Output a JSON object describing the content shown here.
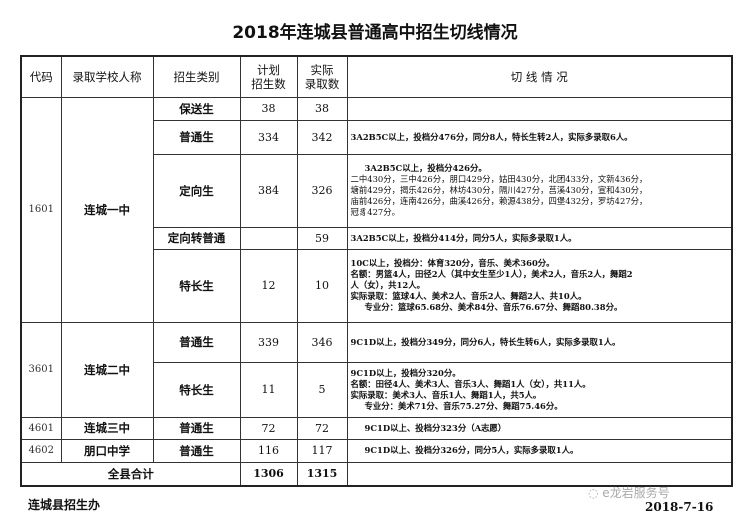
{
  "title": "2018年连城县普通高中招生切线情况",
  "headers": {
    "code": "代码",
    "school": "录取学校人称",
    "category": "招生类别",
    "plan": [
      "计划",
      "招生数"
    ],
    "actual": [
      "实际",
      "录取数"
    ],
    "cutoff": "切 线 情 况"
  },
  "rows": [
    {
      "code": "1601",
      "school": "连城一中",
      "category": "保送生",
      "plan": "38",
      "actual": "38",
      "cutoff": []
    },
    {
      "category": "普通生",
      "plan": "334",
      "actual": "342",
      "cutoff": [
        "3A2B5C以上，投档分476分，同分8人，特长生转2人，实际多录取6人。"
      ]
    },
    {
      "category": "定向生",
      "plan": "384",
      "actual": "326",
      "cutoff": [
        "3A2B5C以上，投档分426分。",
        "二中430分，三中426分，朋口429分，姑田430分，北团433分，文新436分，",
        "塘前429分，揭乐426分，林坊430分，隔川427分，莒溪430分，宣和430分，",
        "庙前426分，连南426分，曲溪426分，赖源438分，四堡432分，罗坊427分，",
        "冠豸427分。"
      ]
    },
    {
      "category": "定向转普通",
      "plan": "",
      "actual": "59",
      "cutoff": [
        "3A2B5C以上，投档分414分，同分5人，实际多录取1人。"
      ]
    },
    {
      "category": "特长生",
      "plan": "12",
      "actual": "10",
      "cutoff": [
        "10C以上，投档分：体育320分，音乐、美术360分。",
        "名额：男篮4人，田径2人（其中女生至少1人），美术2人，音乐2人，舞蹈2",
        "人（女），共12人。",
        "实际录取：篮球4人、美术2人、音乐2人、舞蹈2人、共10人。",
        "专业分：篮球65.68分、美术84分、音乐76.67分、舞蹈80.38分。"
      ]
    },
    {
      "code": "3601",
      "school": "连城二中",
      "category": "普通生",
      "plan": "339",
      "actual": "346",
      "cutoff": [
        "9C1D以上，投档分349分，同分6人，特长生转6人，实际多录取1人。"
      ]
    },
    {
      "category": "特长生",
      "plan": "11",
      "actual": "5",
      "cutoff": [
        "9C1D以上，投档分320分。",
        "名额：田径4人、美术3人、音乐3人、舞蹈1人（女），共11人。",
        "实际录取：美术3人、音乐1人、舞蹈1人，共5人。",
        "专业分：美术71分、音乐75.27分、舞蹈75.46分。"
      ]
    },
    {
      "code": "4601",
      "school": "连城三中",
      "category": "普通生",
      "plan": "72",
      "actual": "72",
      "cutoff": [
        "9C1D以上、投档分323分（A志愿）"
      ]
    },
    {
      "code": "4602",
      "school": "朋口中学",
      "category": "普通生",
      "plan": "116",
      "actual": "117",
      "cutoff": [
        "9C1D以上、投档分326分，同分5人，实际多录取1人。"
      ]
    }
  ],
  "total": {
    "label": "全县合计",
    "plan": "1306",
    "actual": "1315"
  },
  "footer": {
    "issuer": "连城县招生办",
    "date": "2018-7-16",
    "watermark": "e龙岩服务号"
  }
}
